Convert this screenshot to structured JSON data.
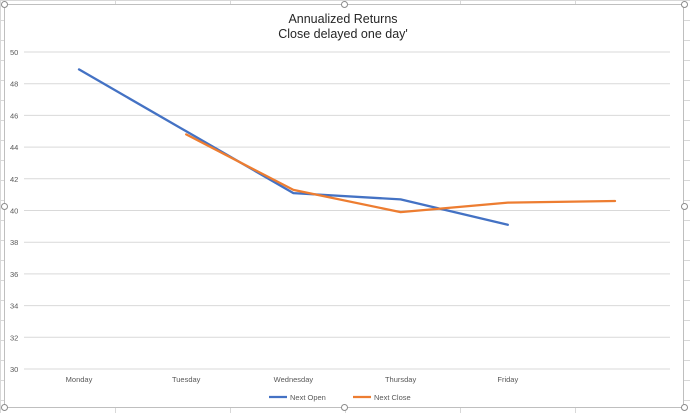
{
  "chart_data": {
    "type": "line",
    "title": "Annualized Returns",
    "subtitle": "Close delayed one day'",
    "categories": [
      "Monday",
      "Tuesday",
      "Wednesday",
      "Thursday",
      "Friday",
      ""
    ],
    "ylim": [
      30,
      50
    ],
    "yticks": [
      30,
      32,
      34,
      36,
      38,
      40,
      42,
      44,
      46,
      48,
      50
    ],
    "grid": true,
    "legend_position": "bottom",
    "series": [
      {
        "name": "Next Open",
        "color": "#4472C4",
        "values": [
          48.9,
          45.0,
          41.1,
          40.7,
          39.1,
          null
        ]
      },
      {
        "name": "Next Close",
        "color": "#ED7D31",
        "values": [
          null,
          44.8,
          41.3,
          39.9,
          40.5,
          40.6
        ]
      }
    ]
  }
}
